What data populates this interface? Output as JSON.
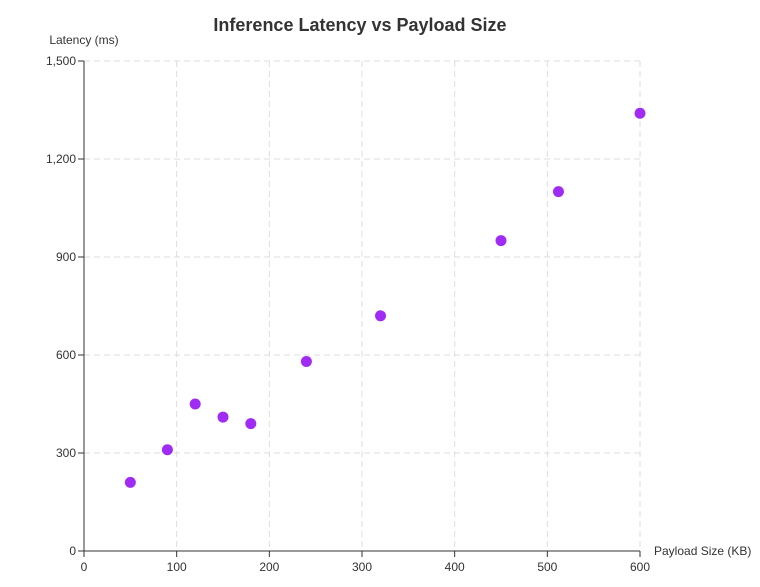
{
  "chart_data": {
    "type": "scatter",
    "title": "Inference Latency vs Payload Size",
    "xlabel": "Payload Size (KB)",
    "ylabel": "Latency (ms)",
    "xlim": [
      0,
      600
    ],
    "ylim": [
      0,
      1500
    ],
    "x_ticks": [
      0,
      100,
      200,
      300,
      400,
      500,
      600
    ],
    "x_tick_labels": [
      "0",
      "100",
      "200",
      "300",
      "400",
      "500",
      "600"
    ],
    "y_ticks": [
      0,
      300,
      600,
      900,
      1200,
      1500
    ],
    "y_tick_labels": [
      "0",
      "300",
      "600",
      "900",
      "1,200",
      "1,500"
    ],
    "grid": true,
    "legend": "none",
    "point_color": "#a02cf4",
    "series": [
      {
        "points": [
          {
            "x": 50,
            "y": 210
          },
          {
            "x": 90,
            "y": 310
          },
          {
            "x": 120,
            "y": 450
          },
          {
            "x": 150,
            "y": 410
          },
          {
            "x": 180,
            "y": 390
          },
          {
            "x": 240,
            "y": 580
          },
          {
            "x": 320,
            "y": 720
          },
          {
            "x": 450,
            "y": 950
          },
          {
            "x": 512,
            "y": 1100
          },
          {
            "x": 600,
            "y": 1340
          }
        ]
      }
    ]
  }
}
